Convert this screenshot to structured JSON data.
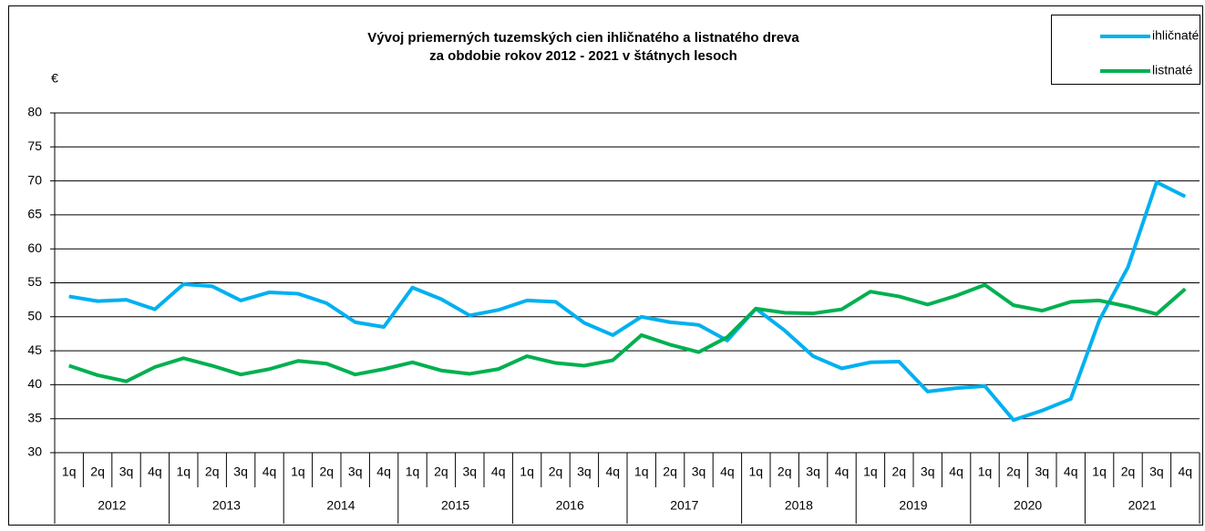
{
  "chart_data": {
    "type": "line",
    "title": [
      "Vývoj priemerných tuzemských cien ihličnatého a listnatého dreva",
      "za obdobie rokov 2012 - 2021 v štátnych lesoch"
    ],
    "y_label": "€",
    "categories": [
      "1q",
      "2q",
      "3q",
      "4q",
      "1q",
      "2q",
      "3q",
      "4q",
      "1q",
      "2q",
      "3q",
      "4q",
      "1q",
      "2q",
      "3q",
      "4q",
      "1q",
      "2q",
      "3q",
      "4q",
      "1q",
      "2q",
      "3q",
      "4q",
      "1q",
      "2q",
      "3q",
      "4q",
      "1q",
      "2q",
      "3q",
      "4q",
      "1q",
      "2q",
      "3q",
      "4q",
      "1q",
      "2q",
      "3q",
      "4q"
    ],
    "years": [
      "2012",
      "2013",
      "2014",
      "2015",
      "2016",
      "2017",
      "2018",
      "2019",
      "2020",
      "2021"
    ],
    "series": [
      {
        "name": "ihličnaté",
        "color": "#00b0f0",
        "values": [
          53,
          52.3,
          52.5,
          51.1,
          54.8,
          54.5,
          52.4,
          53.6,
          53.4,
          52,
          49.2,
          48.5,
          54.3,
          52.6,
          50.2,
          51,
          52.4,
          52.2,
          49.1,
          47.3,
          50,
          49.2,
          48.8,
          46.5,
          51.2,
          48,
          44.2,
          42.4,
          43.3,
          43.4,
          39,
          39.5,
          39.8,
          34.8,
          36.2,
          37.9,
          49.5,
          57.3,
          69.8,
          67.7
        ]
      },
      {
        "name": "listnaté",
        "color": "#00b050",
        "values": [
          42.8,
          41.4,
          40.5,
          42.6,
          43.9,
          42.8,
          41.5,
          42.3,
          43.5,
          43.1,
          41.5,
          42.3,
          43.3,
          42.1,
          41.6,
          42.3,
          44.2,
          43.2,
          42.8,
          43.6,
          47.3,
          45.9,
          44.8,
          47,
          51.2,
          50.6,
          50.5,
          51.1,
          53.7,
          53,
          51.8,
          53.1,
          54.7,
          51.7,
          50.9,
          52.2,
          52.4,
          51.5,
          50.4,
          54.1
        ]
      }
    ],
    "ylim": [
      30,
      80
    ],
    "yticks": [
      30,
      35,
      40,
      45,
      50,
      55,
      60,
      65,
      70,
      75,
      80
    ],
    "grid": true,
    "legend": "top-right"
  }
}
